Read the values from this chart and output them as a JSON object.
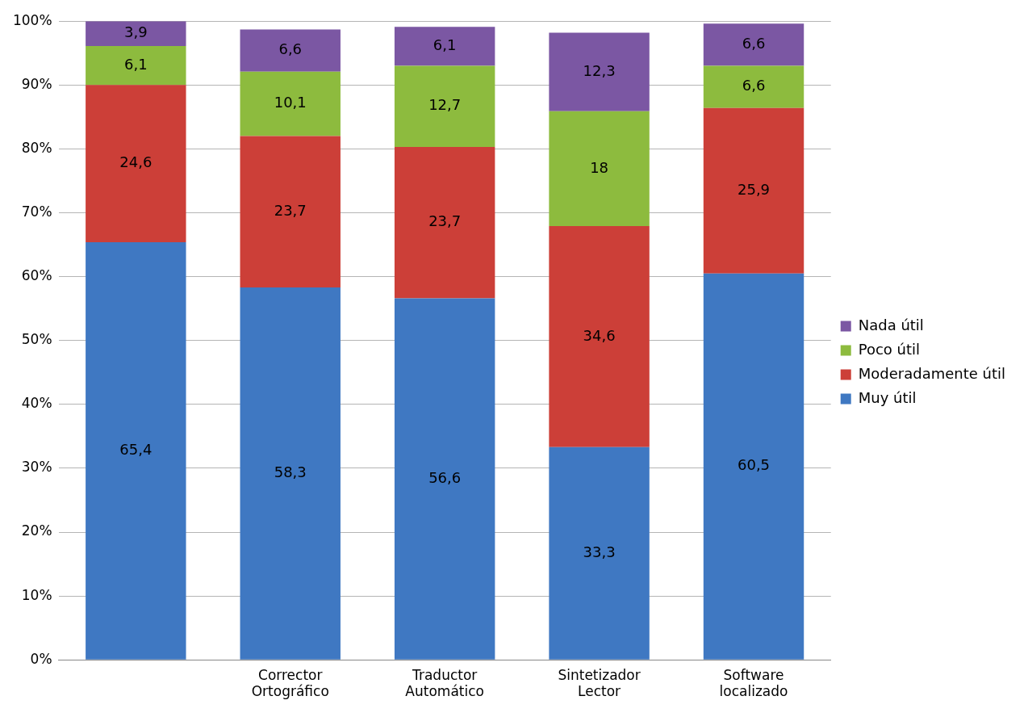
{
  "chart_data": {
    "type": "bar",
    "stacked": true,
    "categories": [
      null,
      "Corrector Ortográfico",
      "Traductor Automático",
      "Sintetizador Lector",
      "Software localizado"
    ],
    "series": [
      {
        "name": "Muy útil",
        "color": "#3f78c2",
        "values": [
          65.4,
          58.3,
          56.6,
          33.3,
          60.5
        ],
        "value_labels": [
          "65,4",
          "58,3",
          "56,6",
          "33,3",
          "60,5"
        ]
      },
      {
        "name": "Moderadamente útil",
        "color": "#cc3f38",
        "values": [
          24.6,
          23.7,
          23.7,
          34.6,
          25.9
        ],
        "value_labels": [
          "24,6",
          "23,7",
          "23,7",
          "34,6",
          "25,9"
        ]
      },
      {
        "name": "Poco útil",
        "color": "#8dbb3e",
        "values": [
          6.1,
          10.1,
          12.7,
          18,
          6.6
        ],
        "value_labels": [
          "6,1",
          "10,1",
          "12,7",
          "18",
          "6,6"
        ]
      },
      {
        "name": "Nada útil",
        "color": "#7b57a3",
        "values": [
          3.9,
          6.6,
          6.1,
          12.3,
          6.6
        ],
        "value_labels": [
          "3,9",
          "6,6",
          "6,1",
          "12,3",
          "6,6"
        ]
      }
    ],
    "ylim": [
      0,
      100
    ],
    "yticks": [
      {
        "value": 0,
        "label": "0%"
      },
      {
        "value": 10,
        "label": "10%"
      },
      {
        "value": 20,
        "label": "20%"
      },
      {
        "value": 30,
        "label": "30%"
      },
      {
        "value": 40,
        "label": "40%"
      },
      {
        "value": 50,
        "label": "50%"
      },
      {
        "value": 60,
        "label": "60%"
      },
      {
        "value": 70,
        "label": "70%"
      },
      {
        "value": 80,
        "label": "80%"
      },
      {
        "value": 90,
        "label": "90%"
      },
      {
        "value": 100,
        "label": "100%"
      }
    ],
    "grid": "y",
    "legend": "right"
  }
}
